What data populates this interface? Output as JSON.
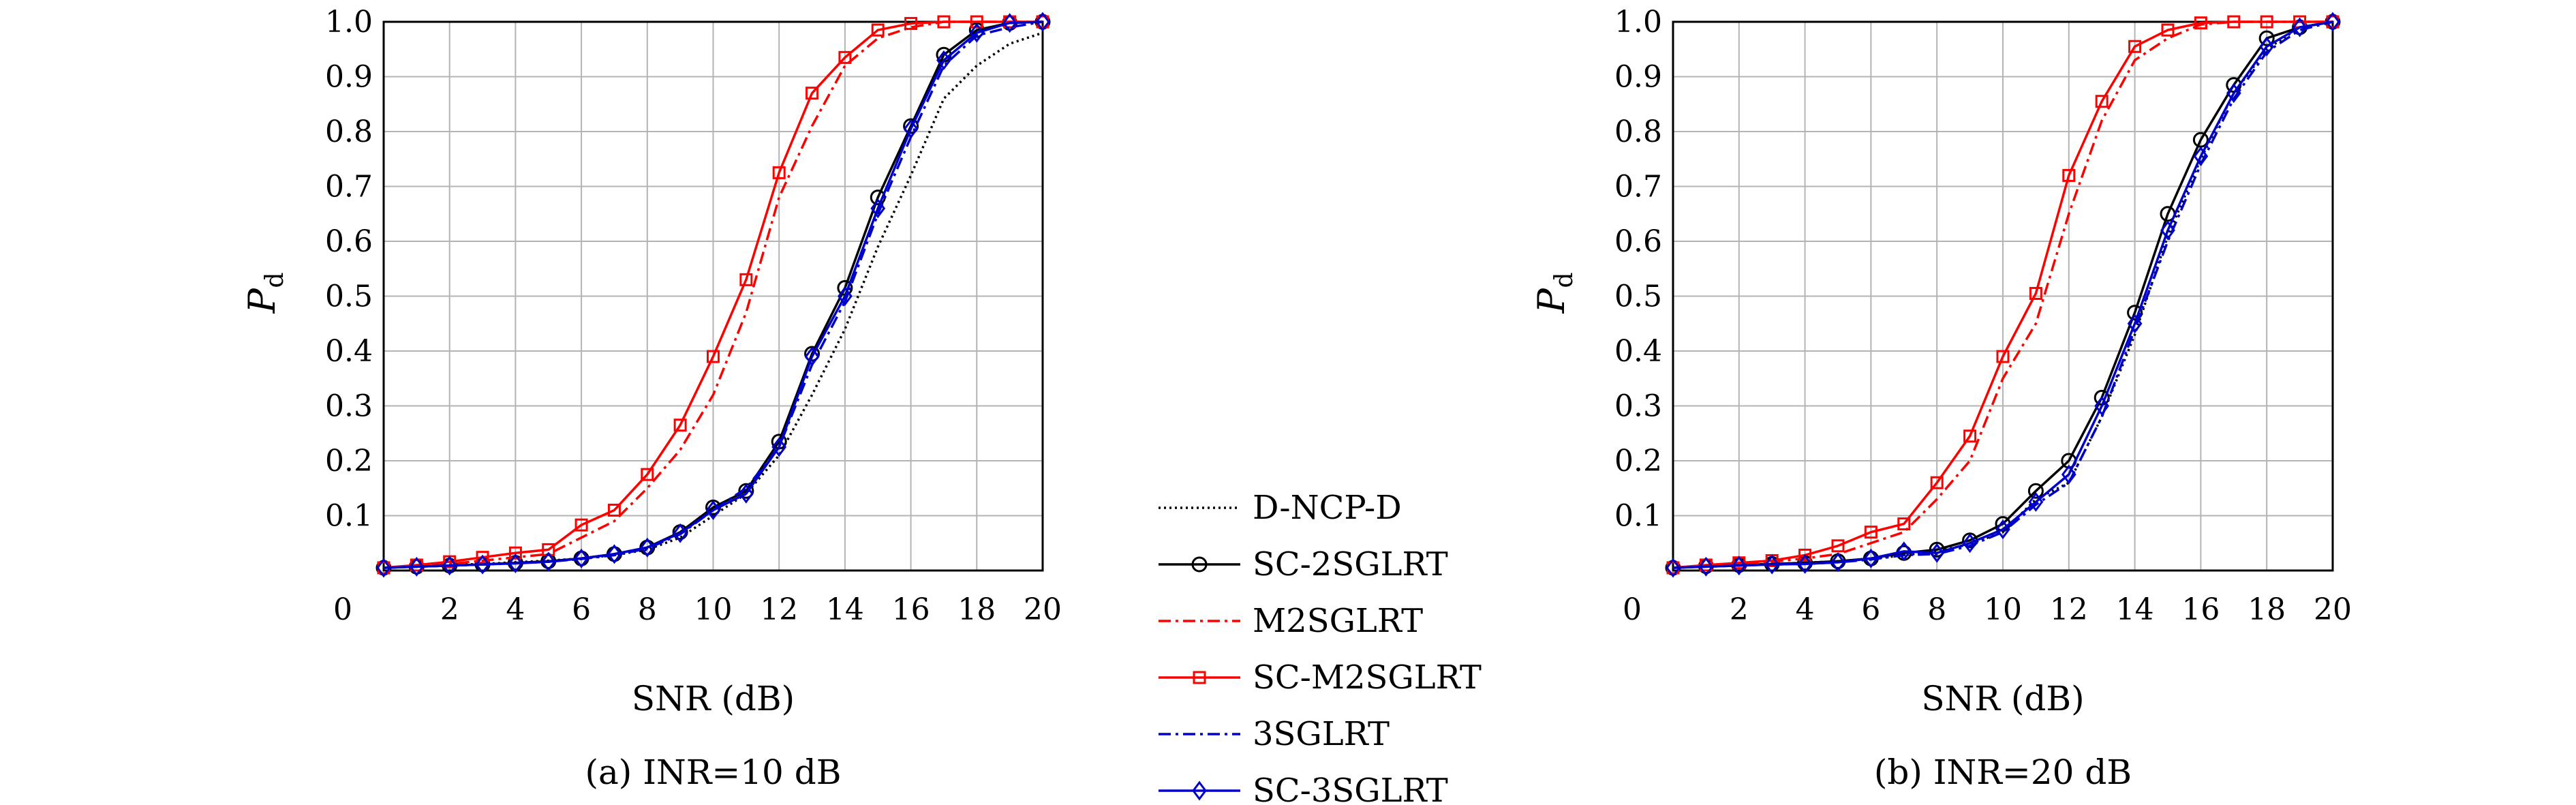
{
  "chart_data": [
    {
      "type": "line",
      "caption": "(a) INR=10 dB",
      "xlabel": "SNR (dB)",
      "ylabel_main": "P",
      "ylabel_sub": "d",
      "xlim": [
        0,
        20
      ],
      "ylim": [
        0,
        1
      ],
      "xticks": [
        "2",
        "4",
        "6",
        "8",
        "10",
        "12",
        "14",
        "16",
        "18",
        "20"
      ],
      "x_origin_label": "0",
      "yticks": [
        "0.1",
        "0.2",
        "0.3",
        "0.4",
        "0.5",
        "0.6",
        "0.7",
        "0.8",
        "0.9",
        "1.0"
      ],
      "grid": true,
      "x": [
        0,
        1,
        2,
        3,
        4,
        5,
        6,
        7,
        8,
        9,
        10,
        11,
        12,
        13,
        14,
        15,
        16,
        17,
        18,
        19,
        20
      ],
      "series": [
        {
          "name": "D-NCP-D",
          "values": [
            0.005,
            0.008,
            0.01,
            0.012,
            0.015,
            0.018,
            0.022,
            0.028,
            0.038,
            0.06,
            0.1,
            0.14,
            0.21,
            0.32,
            0.44,
            0.59,
            0.72,
            0.86,
            0.92,
            0.96,
            0.98
          ]
        },
        {
          "name": "SC-2SGLRT",
          "values": [
            0.005,
            0.007,
            0.009,
            0.011,
            0.014,
            0.017,
            0.022,
            0.03,
            0.042,
            0.07,
            0.115,
            0.145,
            0.235,
            0.395,
            0.515,
            0.68,
            0.81,
            0.94,
            0.985,
            0.998,
            1.0
          ]
        },
        {
          "name": "M2SGLRT",
          "values": [
            0.005,
            0.008,
            0.012,
            0.018,
            0.024,
            0.03,
            0.06,
            0.09,
            0.15,
            0.22,
            0.32,
            0.47,
            0.68,
            0.81,
            0.92,
            0.97,
            0.99,
            1.0,
            1.0,
            1.0,
            1.0
          ]
        },
        {
          "name": "SC-M2SGLRT",
          "values": [
            0.005,
            0.01,
            0.016,
            0.024,
            0.032,
            0.038,
            0.083,
            0.11,
            0.175,
            0.265,
            0.39,
            0.53,
            0.725,
            0.87,
            0.935,
            0.985,
            0.997,
            1.0,
            1.0,
            1.0,
            1.0
          ]
        },
        {
          "name": "3SGLRT",
          "values": [
            0.005,
            0.007,
            0.009,
            0.011,
            0.013,
            0.016,
            0.021,
            0.028,
            0.04,
            0.066,
            0.11,
            0.15,
            0.225,
            0.375,
            0.49,
            0.65,
            0.79,
            0.92,
            0.975,
            0.99,
            1.0
          ]
        },
        {
          "name": "SC-3SGLRT",
          "values": [
            0.005,
            0.007,
            0.009,
            0.011,
            0.013,
            0.016,
            0.022,
            0.03,
            0.042,
            0.068,
            0.11,
            0.14,
            0.225,
            0.39,
            0.5,
            0.66,
            0.805,
            0.93,
            0.98,
            0.998,
            1.0
          ]
        }
      ]
    },
    {
      "type": "line",
      "caption": "(b) INR=20 dB",
      "xlabel": "SNR (dB)",
      "ylabel_main": "P",
      "ylabel_sub": "d",
      "xlim": [
        0,
        20
      ],
      "ylim": [
        0,
        1
      ],
      "xticks": [
        "2",
        "4",
        "6",
        "8",
        "10",
        "12",
        "14",
        "16",
        "18",
        "20"
      ],
      "x_origin_label": "0",
      "yticks": [
        "0.1",
        "0.2",
        "0.3",
        "0.4",
        "0.5",
        "0.6",
        "0.7",
        "0.8",
        "0.9",
        "1.0"
      ],
      "grid": true,
      "x": [
        0,
        1,
        2,
        3,
        4,
        5,
        6,
        7,
        8,
        9,
        10,
        11,
        12,
        13,
        14,
        15,
        16,
        17,
        18,
        19,
        20
      ],
      "series": [
        {
          "name": "D-NCP-D",
          "values": [
            0.005,
            0.008,
            0.01,
            0.012,
            0.014,
            0.017,
            0.021,
            0.028,
            0.035,
            0.048,
            0.07,
            0.13,
            0.16,
            0.28,
            0.43,
            0.61,
            0.75,
            0.87,
            0.95,
            0.99,
            1.0
          ]
        },
        {
          "name": "SC-2SGLRT",
          "values": [
            0.005,
            0.008,
            0.01,
            0.012,
            0.014,
            0.017,
            0.022,
            0.032,
            0.038,
            0.055,
            0.085,
            0.145,
            0.2,
            0.315,
            0.47,
            0.65,
            0.785,
            0.885,
            0.97,
            0.99,
            1.0
          ]
        },
        {
          "name": "M2SGLRT",
          "values": [
            0.005,
            0.009,
            0.012,
            0.016,
            0.022,
            0.03,
            0.05,
            0.07,
            0.13,
            0.2,
            0.35,
            0.45,
            0.65,
            0.82,
            0.93,
            0.97,
            0.995,
            1.0,
            1.0,
            1.0,
            1.0
          ]
        },
        {
          "name": "SC-M2SGLRT",
          "values": [
            0.005,
            0.01,
            0.014,
            0.018,
            0.028,
            0.045,
            0.07,
            0.085,
            0.16,
            0.245,
            0.39,
            0.505,
            0.72,
            0.855,
            0.955,
            0.985,
            0.998,
            1.0,
            1.0,
            1.0,
            1.0
          ]
        },
        {
          "name": "3SGLRT",
          "values": [
            0.005,
            0.007,
            0.009,
            0.011,
            0.012,
            0.015,
            0.02,
            0.028,
            0.03,
            0.045,
            0.07,
            0.12,
            0.16,
            0.28,
            0.44,
            0.6,
            0.74,
            0.86,
            0.945,
            0.985,
            1.0
          ]
        },
        {
          "name": "SC-3SGLRT",
          "values": [
            0.005,
            0.007,
            0.009,
            0.011,
            0.012,
            0.015,
            0.022,
            0.035,
            0.032,
            0.05,
            0.075,
            0.125,
            0.175,
            0.3,
            0.45,
            0.62,
            0.755,
            0.87,
            0.955,
            0.99,
            1.0
          ]
        }
      ]
    }
  ],
  "legend": {
    "entries": [
      {
        "name": "D-NCP-D",
        "color": "#000000",
        "dash": "dot",
        "marker": "none"
      },
      {
        "name": "SC-2SGLRT",
        "color": "#000000",
        "dash": "solid",
        "marker": "circle"
      },
      {
        "name": "M2SGLRT",
        "color": "#ff0000",
        "dash": "dashdot",
        "marker": "none"
      },
      {
        "name": "SC-M2SGLRT",
        "color": "#ff0000",
        "dash": "solid",
        "marker": "square"
      },
      {
        "name": "3SGLRT",
        "color": "#0000cc",
        "dash": "dashdot",
        "marker": "none"
      },
      {
        "name": "SC-3SGLRT",
        "color": "#0000cc",
        "dash": "solid",
        "marker": "diamond"
      }
    ]
  }
}
